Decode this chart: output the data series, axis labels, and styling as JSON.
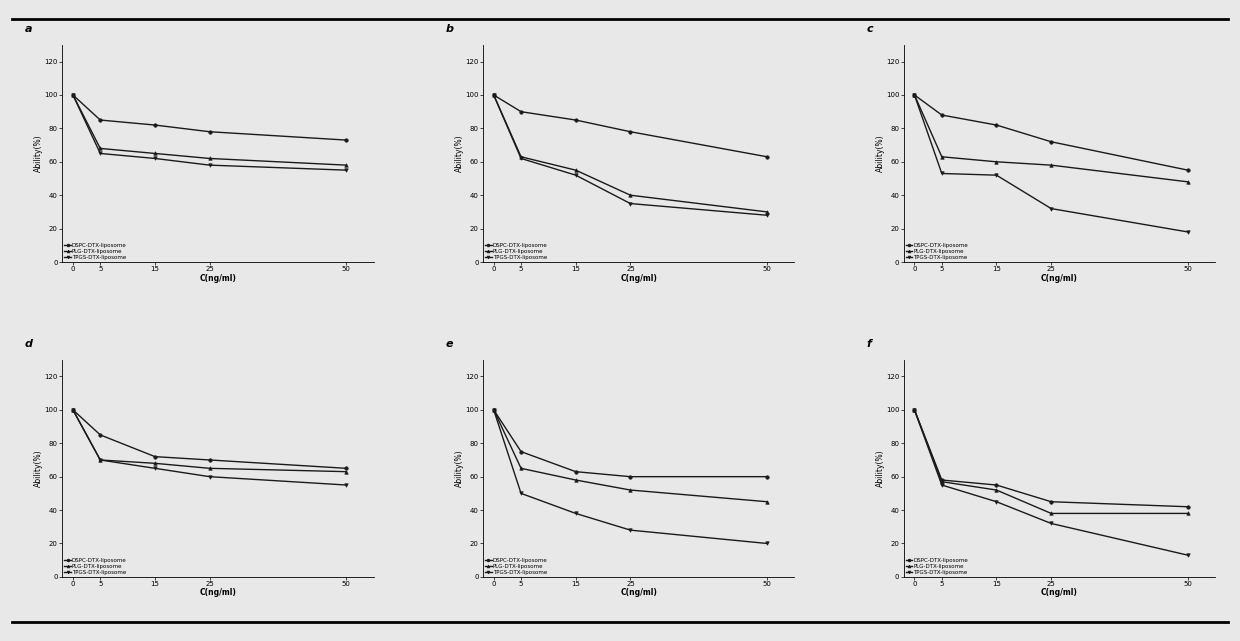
{
  "x": [
    0,
    5,
    15,
    25,
    50
  ],
  "subplots": [
    {
      "label": "a",
      "lines": [
        [
          100,
          85,
          82,
          78,
          73
        ],
        [
          100,
          68,
          65,
          62,
          58
        ],
        [
          100,
          65,
          62,
          58,
          55
        ]
      ]
    },
    {
      "label": "b",
      "lines": [
        [
          100,
          90,
          85,
          78,
          63
        ],
        [
          100,
          63,
          55,
          40,
          30
        ],
        [
          100,
          62,
          52,
          35,
          28
        ]
      ]
    },
    {
      "label": "c",
      "lines": [
        [
          100,
          88,
          82,
          72,
          55
        ],
        [
          100,
          63,
          60,
          58,
          48
        ],
        [
          100,
          53,
          52,
          32,
          18
        ]
      ]
    },
    {
      "label": "d",
      "lines": [
        [
          100,
          85,
          72,
          70,
          65
        ],
        [
          100,
          70,
          68,
          65,
          63
        ],
        [
          100,
          70,
          65,
          60,
          55
        ]
      ]
    },
    {
      "label": "e",
      "lines": [
        [
          100,
          75,
          63,
          60,
          60
        ],
        [
          100,
          65,
          58,
          52,
          45
        ],
        [
          100,
          50,
          38,
          28,
          20
        ]
      ]
    },
    {
      "label": "f",
      "lines": [
        [
          100,
          58,
          55,
          45,
          42
        ],
        [
          100,
          57,
          52,
          38,
          38
        ],
        [
          100,
          55,
          45,
          32,
          13
        ]
      ]
    }
  ],
  "legend_labels": [
    "DSPC-DTX-liposome",
    "PLG-DTX-liposome",
    "TPGS-DTX-liposome"
  ],
  "markers": [
    "o",
    "^",
    "v"
  ],
  "xlabel": "C(ng/ml)",
  "ylabel": "Ability(%)",
  "ylim": [
    0,
    130
  ],
  "yticks": [
    0,
    20,
    40,
    60,
    80,
    100,
    120
  ],
  "xticks": [
    0,
    5,
    15,
    25,
    50
  ],
  "line_color": "#1a1a1a",
  "background_color": "#e8e8e8",
  "axis_fontsize": 5.5,
  "tick_fontsize": 5,
  "legend_fontsize": 4,
  "label_fontsize": 8,
  "linewidth": 1.0,
  "markersize": 2.5
}
